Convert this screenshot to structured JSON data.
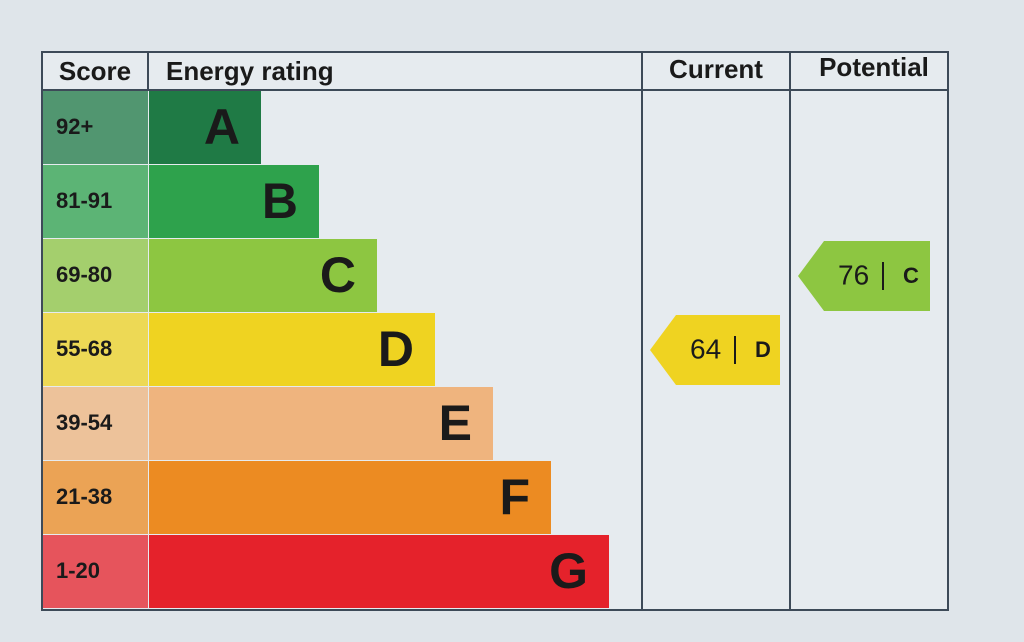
{
  "header": {
    "score": "Score",
    "energy_rating": "Energy rating",
    "current": "Current",
    "potential": "Potential"
  },
  "bands": [
    {
      "score": "92+",
      "letter": "A",
      "color": "#1f7a45"
    },
    {
      "score": "81-91",
      "letter": "B",
      "color": "#2ea24c"
    },
    {
      "score": "69-80",
      "letter": "C",
      "color": "#8dc641"
    },
    {
      "score": "55-68",
      "letter": "D",
      "color": "#efd321"
    },
    {
      "score": "39-54",
      "letter": "E",
      "color": "#efb47e"
    },
    {
      "score": "21-38",
      "letter": "F",
      "color": "#ec8b22"
    },
    {
      "score": "1-20",
      "letter": "G",
      "color": "#e5222b"
    }
  ],
  "current": {
    "value": 64,
    "letter": "D"
  },
  "potential": {
    "value": 76,
    "letter": "C"
  }
}
